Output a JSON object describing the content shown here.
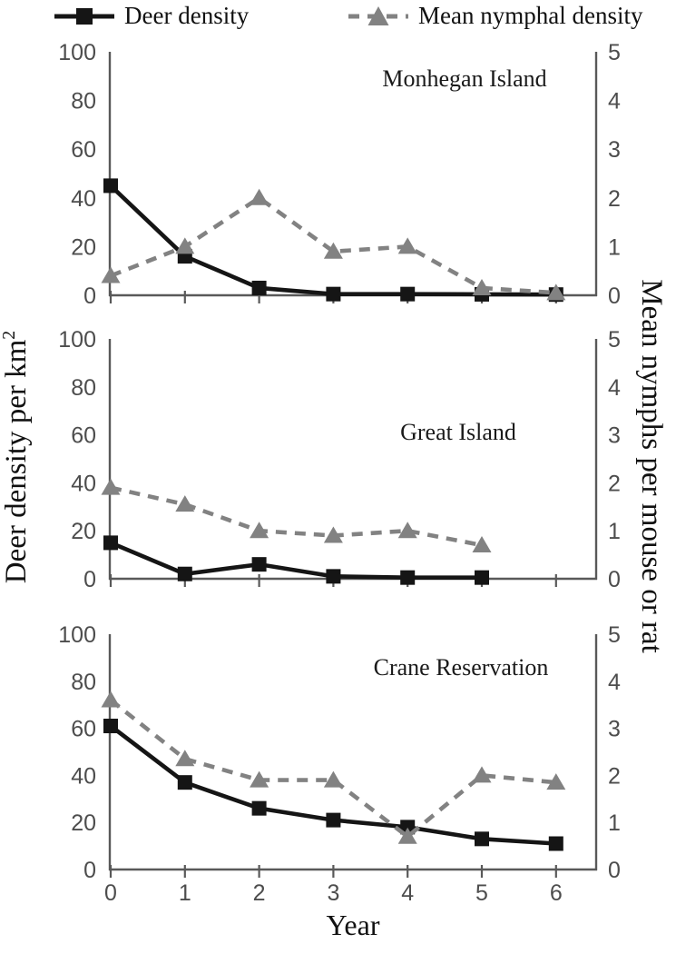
{
  "colors": {
    "deer": "#151515",
    "nymph": "#828282",
    "axis": "#595959",
    "tick_text": "#4d4d4d",
    "title_text": "#1a1a1a"
  },
  "legend": {
    "deer_label": "Deer density",
    "nymph_label": "Mean nymphal density"
  },
  "axes": {
    "left": {
      "label_main": "Deer density per km",
      "label_sup": "2",
      "range": [
        0,
        100
      ],
      "ticks": [
        0,
        20,
        40,
        60,
        80,
        100
      ]
    },
    "right": {
      "label": "Mean nymphs per mouse or rat",
      "range": [
        0,
        5
      ],
      "ticks": [
        0,
        1,
        2,
        3,
        4,
        5
      ]
    },
    "x": {
      "label": "Year",
      "ticks": [
        0,
        1,
        2,
        3,
        4,
        5,
        6
      ]
    }
  },
  "chart_data": [
    {
      "type": "line",
      "title": "Monhegan Island",
      "x": [
        0,
        1,
        2,
        3,
        4,
        5,
        6
      ],
      "series": [
        {
          "name": "Deer density",
          "axis": "left",
          "marker": "square",
          "line_style": "solid",
          "values": [
            45,
            16,
            3,
            0.5,
            0.5,
            0.4,
            0.3
          ]
        },
        {
          "name": "Mean nymphal density",
          "axis": "right",
          "marker": "triangle",
          "line_style": "dashed",
          "values": [
            0.4,
            1.0,
            2.0,
            0.9,
            1.0,
            0.15,
            0.05
          ]
        }
      ]
    },
    {
      "type": "line",
      "title": "Great Island",
      "x": [
        0,
        1,
        2,
        3,
        4,
        5
      ],
      "series": [
        {
          "name": "Deer density",
          "axis": "left",
          "marker": "square",
          "line_style": "solid",
          "values": [
            15,
            2,
            6,
            1,
            0.5,
            0.5
          ]
        },
        {
          "name": "Mean nymphal density",
          "axis": "right",
          "marker": "triangle",
          "line_style": "dashed",
          "values": [
            1.9,
            1.55,
            1.0,
            0.9,
            1.0,
            0.7
          ]
        }
      ]
    },
    {
      "type": "line",
      "title": "Crane Reservation",
      "x": [
        0,
        1,
        2,
        3,
        4,
        5,
        6
      ],
      "series": [
        {
          "name": "Deer density",
          "axis": "left",
          "marker": "square",
          "line_style": "solid",
          "values": [
            61,
            37,
            26,
            21,
            18,
            13,
            11
          ]
        },
        {
          "name": "Mean nymphal density",
          "axis": "right",
          "marker": "triangle",
          "line_style": "dashed",
          "values": [
            3.6,
            2.35,
            1.9,
            1.9,
            0.7,
            2.0,
            1.85
          ]
        }
      ]
    }
  ]
}
